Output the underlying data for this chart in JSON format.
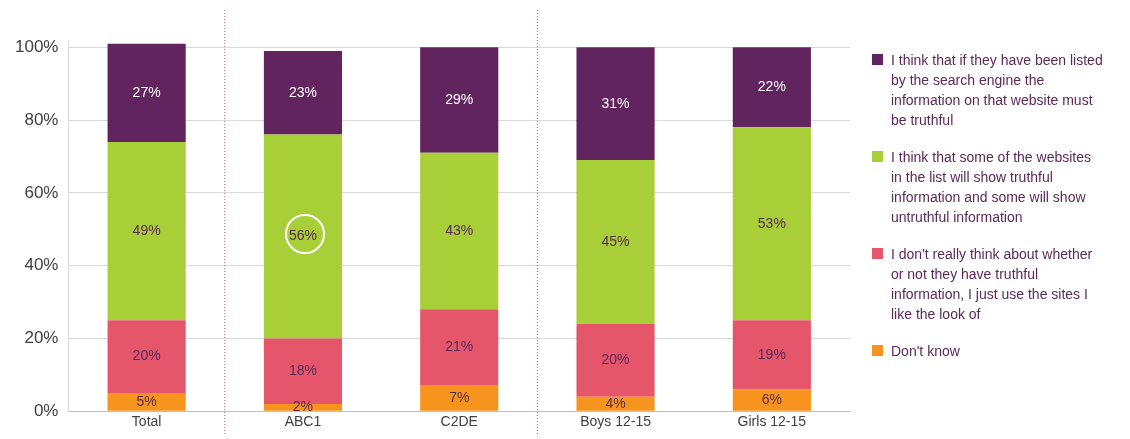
{
  "chart_data": {
    "type": "bar",
    "stacked": true,
    "categories": [
      "Total",
      "ABC1",
      "C2DE",
      "Boys 12-15",
      "Girls 12-15"
    ],
    "series": [
      {
        "name": "Don't know",
        "color": "#f7941d",
        "values": [
          5,
          2,
          7,
          4,
          6
        ],
        "value_labels": [
          "5%",
          "2%",
          "7%",
          "4%",
          "6%"
        ]
      },
      {
        "name": "I don't really think about whether or not they have truthful information, I just use the sites I like the look of",
        "color": "#e5566a",
        "values": [
          20,
          18,
          21,
          20,
          19
        ],
        "value_labels": [
          "20%",
          "18%",
          "21%",
          "20%",
          "19%"
        ]
      },
      {
        "name": "I think that some of the websites in the list will show truthful information and some will show untruthful information",
        "color": "#a8cf38",
        "values": [
          49,
          56,
          43,
          45,
          53
        ],
        "value_labels": [
          "49%",
          "56%",
          "43%",
          "45%",
          "53%"
        ]
      },
      {
        "name": "I think that if they have been listed by the search engine the information on that website must be truthful",
        "color": "#62245f",
        "values": [
          27,
          23,
          29,
          31,
          22
        ],
        "value_labels": [
          "27%",
          "23%",
          "29%",
          "31%",
          "22%"
        ]
      }
    ],
    "ylim": [
      0,
      102
    ],
    "yticks": [
      {
        "value": 0,
        "label": "0%"
      },
      {
        "value": 20,
        "label": "20%"
      },
      {
        "value": 40,
        "label": "40%"
      },
      {
        "value": 60,
        "label": "60%"
      },
      {
        "value": 80,
        "label": "80%"
      },
      {
        "value": 100,
        "label": "100%"
      }
    ],
    "grid": "y",
    "legend": "right"
  }
}
